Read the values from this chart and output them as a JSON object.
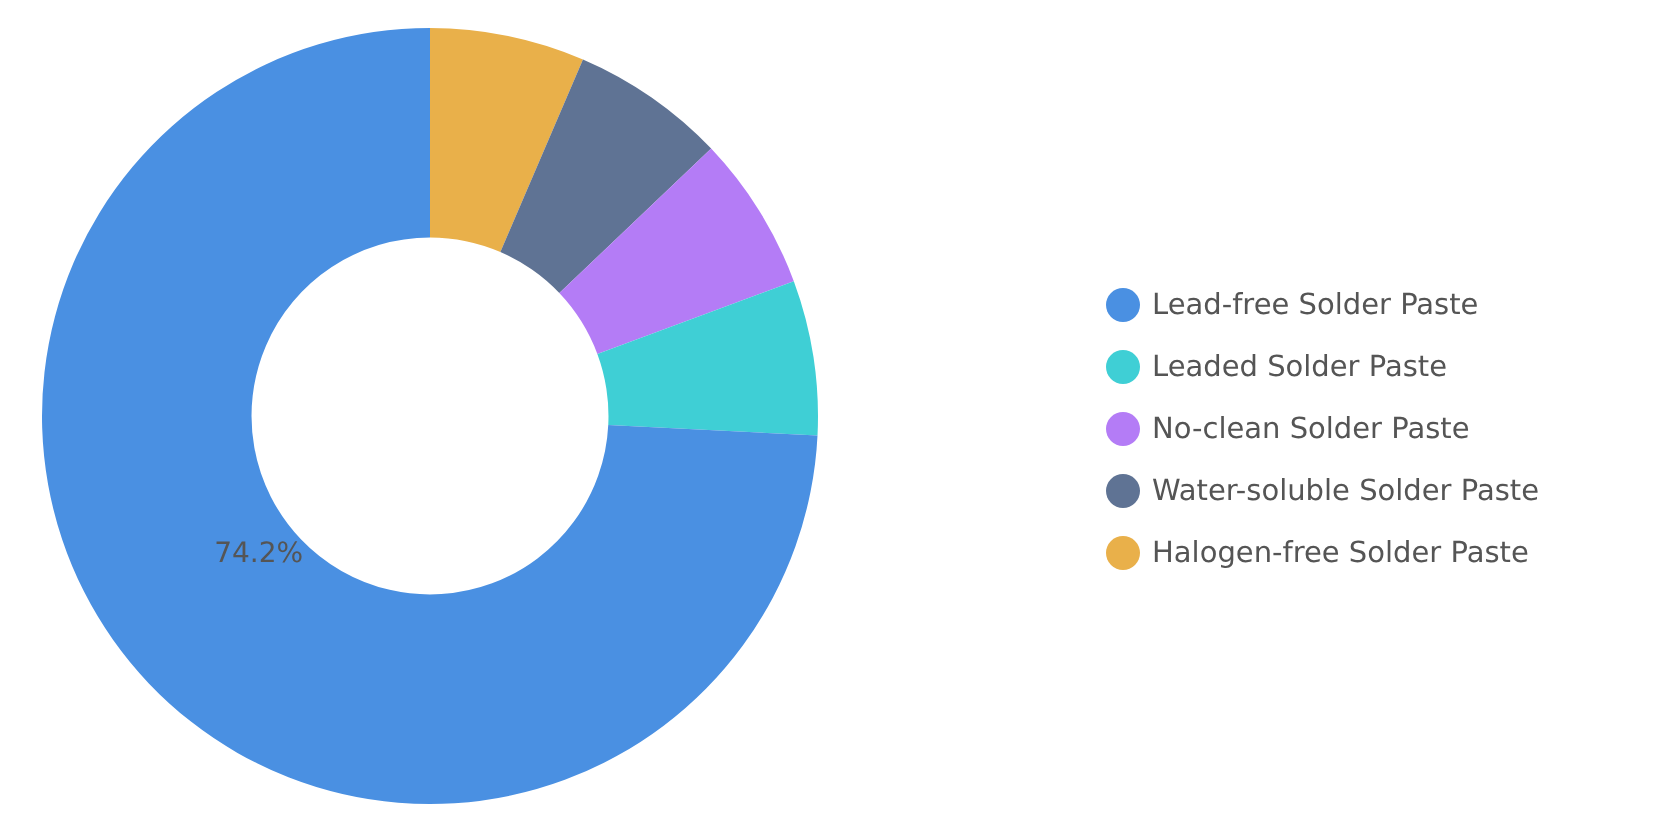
{
  "chart_data": {
    "type": "donut",
    "categories": [
      "Lead-free Solder Paste",
      "Leaded Solder Paste",
      "No-clean Solder Paste",
      "Water-soluble Solder Paste",
      "Halogen-free Solder Paste"
    ],
    "values": [
      74.2,
      6.45,
      6.45,
      6.45,
      6.45
    ],
    "colors": [
      "#4a90e2",
      "#3fcfd5",
      "#b47cf6",
      "#5f7394",
      "#e9b04a"
    ],
    "value_labels": [
      "74.2%",
      null,
      null,
      null,
      null
    ],
    "legend": "right"
  }
}
